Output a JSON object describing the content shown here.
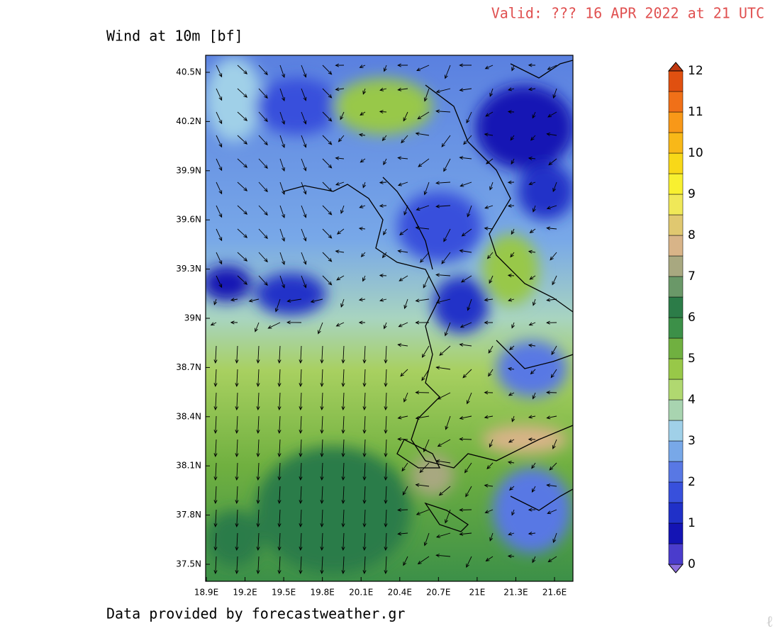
{
  "header": {
    "title": "Wind at 10m [bf]",
    "valid": "Valid: ??? 16 APR 2022 at 21 UTC"
  },
  "axes": {
    "lat_labels": [
      "40.5N",
      "40.2N",
      "39.9N",
      "39.6N",
      "39.3N",
      "39N",
      "38.7N",
      "38.4N",
      "38.1N",
      "37.8N",
      "37.5N"
    ],
    "lon_labels": [
      "18.9E",
      "19.2E",
      "19.5E",
      "19.8E",
      "20.1E",
      "20.4E",
      "20.7E",
      "21E",
      "21.3E",
      "21.6E"
    ]
  },
  "colorbar": {
    "labels": [
      "0",
      "1",
      "2",
      "3",
      "4",
      "5",
      "6",
      "7",
      "8",
      "9",
      "10",
      "11",
      "12"
    ],
    "colors": [
      "#8c6fdc",
      "#4a3ccc",
      "#1414b4",
      "#2030c8",
      "#3850dc",
      "#5878e4",
      "#78a8e8",
      "#a0d0e8",
      "#a8d4b0",
      "#b0d870",
      "#98c848",
      "#70b040",
      "#3c9048",
      "#2c7c48",
      "#6a9868",
      "#a8a880",
      "#d8b488",
      "#e0c870",
      "#f0e858",
      "#f8f030",
      "#f8d818",
      "#f8b818",
      "#f89818",
      "#f07018",
      "#e05010",
      "#c03810"
    ]
  },
  "footer": {
    "credit": "Data provided by forecastweather.gr"
  }
}
